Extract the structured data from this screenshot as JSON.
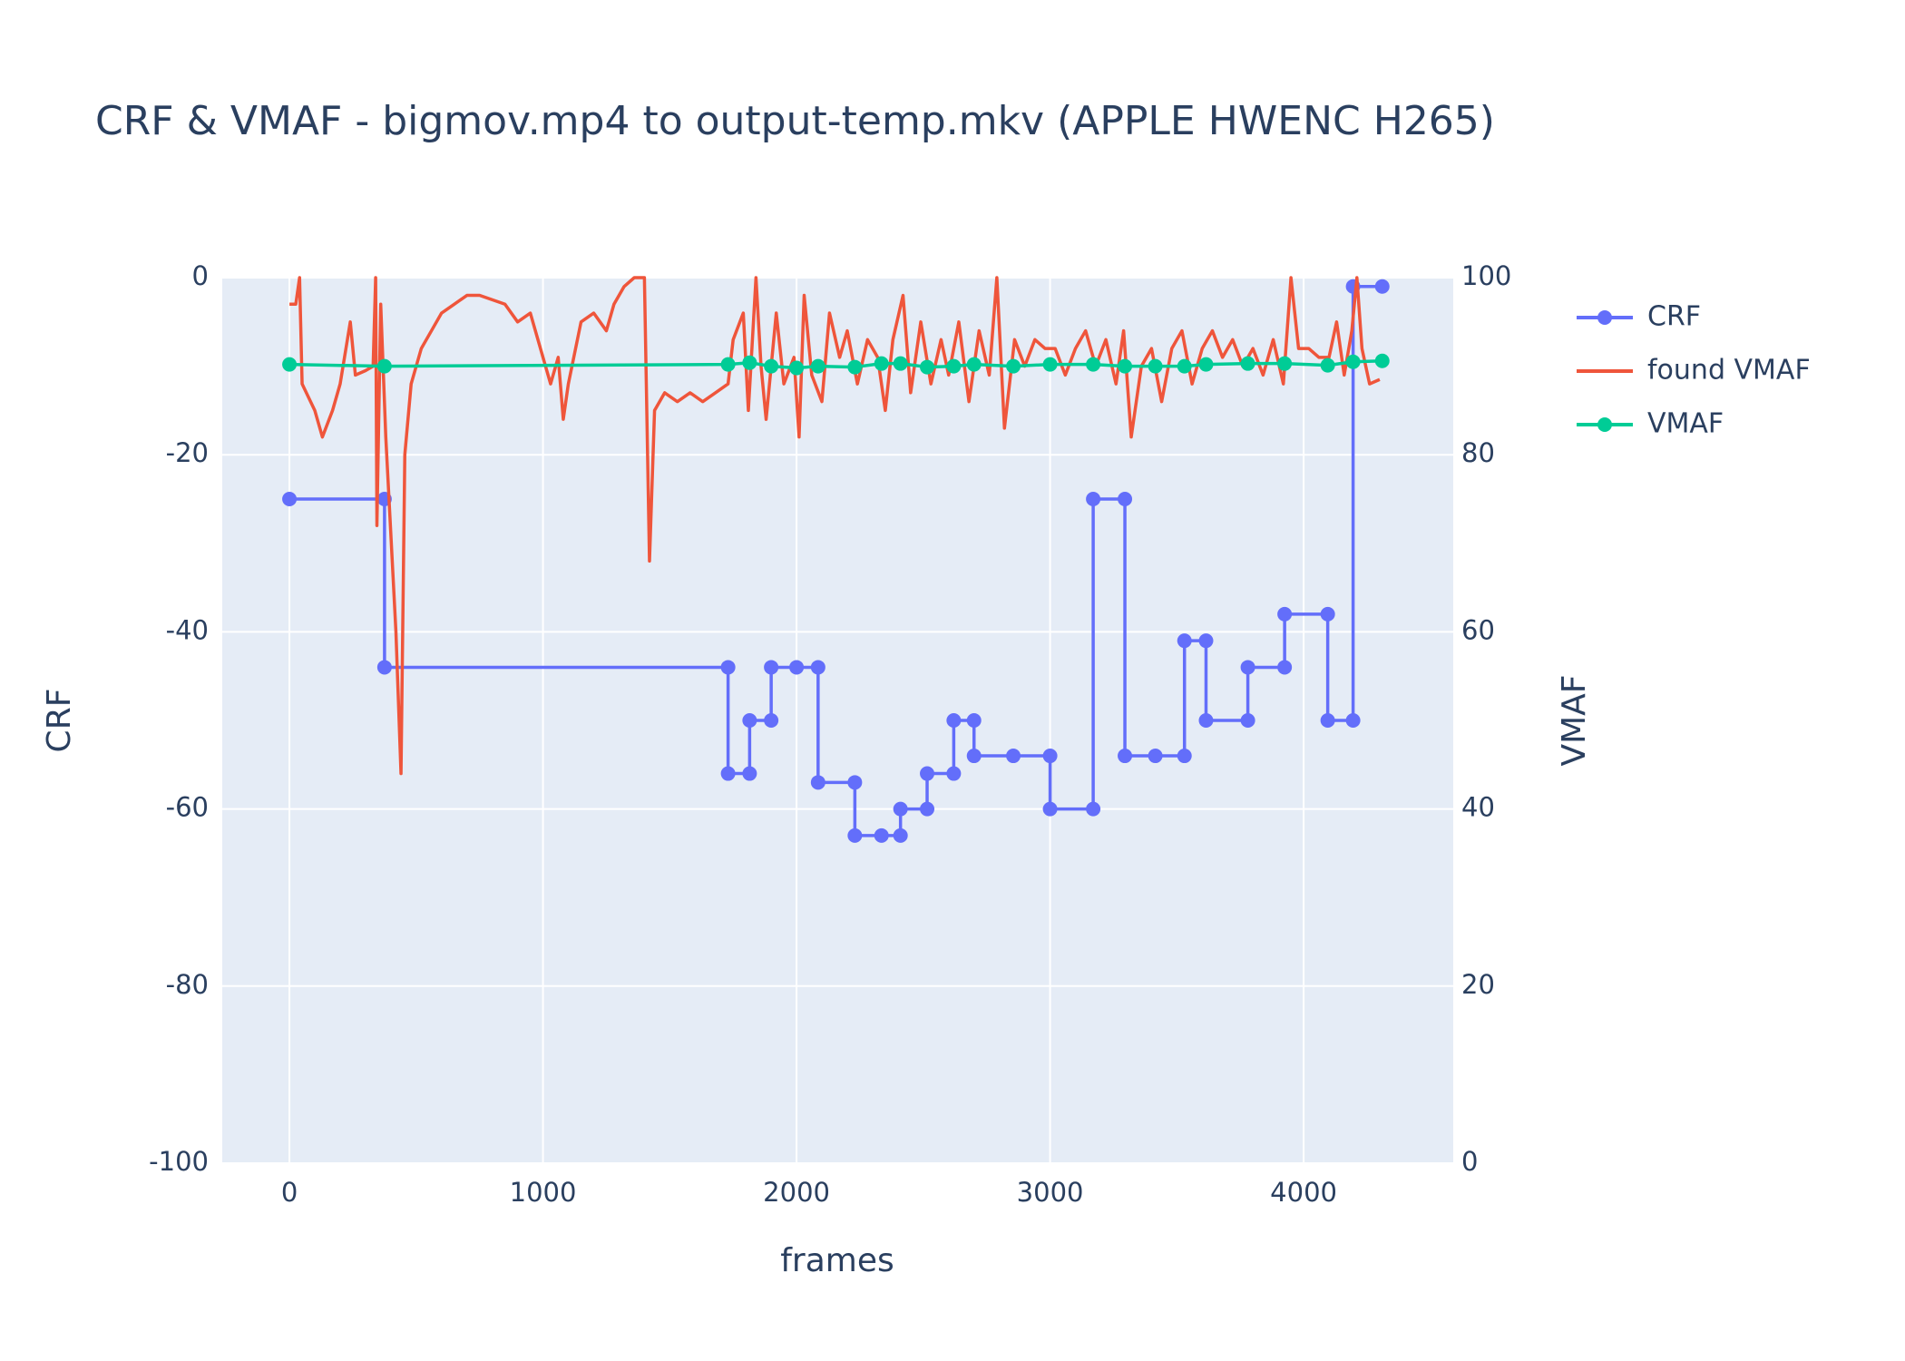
{
  "chart_data": {
    "type": "line",
    "title": "CRF & VMAF - bigmov.mp4 to output-temp.mkv (APPLE HWENC H265)",
    "x_label": "frames",
    "y_label": "CRF",
    "y2_label": "VMAF",
    "xlim": [
      -265,
      4590
    ],
    "xticks": [
      0,
      1000,
      2000,
      3000,
      4000
    ],
    "ylim": [
      -100,
      0
    ],
    "yticks": [
      -100,
      -80,
      -60,
      -40,
      -20,
      0
    ],
    "y2lim": [
      0,
      100
    ],
    "y2ticks": [
      0,
      20,
      40,
      60,
      80,
      100
    ],
    "grid": true,
    "legend": "right",
    "series": [
      {
        "name": "CRF",
        "color": "#636efa",
        "markers": true,
        "x": [
          0,
          375,
          375,
          1730,
          1730,
          1815,
          1815,
          1900,
          1900,
          2000,
          2085,
          2085,
          2230,
          2230,
          2335,
          2410,
          2410,
          2515,
          2515,
          2620,
          2620,
          2700,
          2700,
          2855,
          3000,
          3000,
          3170,
          3170,
          3295,
          3295,
          3415,
          3530,
          3530,
          3615,
          3615,
          3780,
          3780,
          3925,
          3925,
          4095,
          4095,
          4195,
          4195,
          4310
        ],
        "values": [
          -25,
          -25,
          -44,
          -44,
          -56,
          -56,
          -50,
          -50,
          -44,
          -44,
          -44,
          -57,
          -57,
          -63,
          -63,
          -63,
          -60,
          -60,
          -56,
          -56,
          -50,
          -50,
          -54,
          -54,
          -54,
          -60,
          -60,
          -25,
          -25,
          -54,
          -54,
          -54,
          -41,
          -41,
          -50,
          -50,
          -44,
          -44,
          -38,
          -38,
          -50,
          -50,
          -1,
          -1
        ]
      },
      {
        "name": "found VMAF",
        "color": "#ef553b",
        "markers": false,
        "axis": "y2",
        "x": [
          0,
          25,
          40,
          50,
          100,
          130,
          170,
          200,
          240,
          260,
          300,
          330,
          340,
          345,
          360,
          380,
          420,
          440,
          455,
          480,
          520,
          560,
          600,
          650,
          700,
          750,
          800,
          850,
          900,
          950,
          1000,
          1030,
          1060,
          1080,
          1100,
          1150,
          1200,
          1250,
          1280,
          1320,
          1360,
          1400,
          1420,
          1440,
          1480,
          1530,
          1580,
          1630,
          1680,
          1730,
          1750,
          1790,
          1810,
          1840,
          1860,
          1880,
          1920,
          1950,
          1990,
          2010,
          2030,
          2060,
          2100,
          2130,
          2170,
          2200,
          2240,
          2280,
          2320,
          2350,
          2380,
          2420,
          2450,
          2490,
          2530,
          2570,
          2600,
          2640,
          2680,
          2720,
          2760,
          2790,
          2820,
          2860,
          2900,
          2940,
          2980,
          3020,
          3060,
          3100,
          3140,
          3180,
          3220,
          3260,
          3290,
          3320,
          3360,
          3400,
          3440,
          3480,
          3520,
          3560,
          3600,
          3640,
          3680,
          3720,
          3760,
          3800,
          3840,
          3880,
          3920,
          3950,
          3980,
          4020,
          4060,
          4100,
          4130,
          4160,
          4190,
          4210,
          4230,
          4260,
          4300
        ],
        "values": [
          97,
          97,
          100,
          88,
          85,
          82,
          85,
          88,
          95,
          89,
          89.5,
          90,
          100,
          72,
          97,
          82,
          60,
          44,
          80,
          88,
          92,
          94,
          96,
          97,
          98,
          98,
          97.5,
          97,
          95,
          96,
          91,
          88,
          91,
          84,
          88,
          95,
          96,
          94,
          97,
          99,
          100,
          100,
          68,
          85,
          87,
          86,
          87,
          86,
          87,
          88,
          93,
          96,
          85,
          100,
          90,
          84,
          96,
          88,
          91,
          82,
          98,
          89,
          86,
          96,
          91,
          94,
          88,
          93,
          91,
          85,
          93,
          98,
          87,
          95,
          88,
          93,
          89,
          95,
          86,
          94,
          89,
          100,
          83,
          93,
          90,
          93,
          92,
          92,
          89,
          92,
          94,
          90,
          93,
          88,
          94,
          82,
          90,
          92,
          86,
          92,
          94,
          88,
          92,
          94,
          91,
          93,
          90,
          92,
          89,
          93,
          88,
          100,
          92,
          92,
          91,
          91,
          95,
          89,
          94,
          100,
          92,
          88,
          88.5
        ]
      },
      {
        "name": "VMAF",
        "color": "#00cc96",
        "markers": true,
        "axis": "y2",
        "x": [
          0,
          375,
          1730,
          1815,
          1900,
          2000,
          2085,
          2230,
          2335,
          2410,
          2515,
          2620,
          2700,
          2855,
          3000,
          3170,
          3295,
          3415,
          3530,
          3615,
          3780,
          3925,
          4095,
          4195,
          4310
        ],
        "values": [
          90.2,
          90,
          90.2,
          90.4,
          90,
          89.8,
          90,
          89.9,
          90.3,
          90.3,
          89.9,
          90,
          90.2,
          90,
          90.2,
          90.2,
          90,
          90,
          90,
          90.2,
          90.3,
          90.3,
          90.1,
          90.5,
          90.6
        ]
      }
    ]
  }
}
